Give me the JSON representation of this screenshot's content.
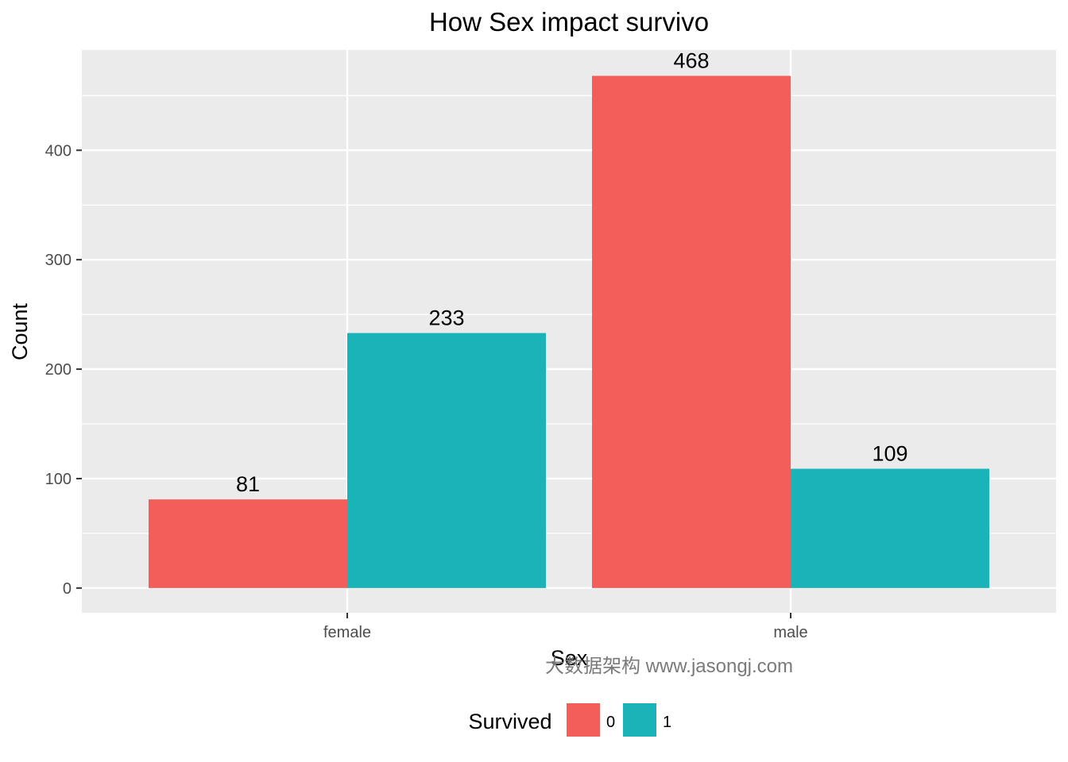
{
  "chart_data": {
    "type": "bar",
    "title": "How Sex impact survivo",
    "xlabel": "Sex",
    "ylabel": "Count",
    "categories": [
      "female",
      "male"
    ],
    "series": [
      {
        "name": "0",
        "color": "#F35E5A",
        "values": [
          81,
          468
        ]
      },
      {
        "name": "1",
        "color": "#19B3B8",
        "values": [
          233,
          109
        ]
      }
    ],
    "ylim": [
      -22.6,
      491.6
    ],
    "yticks": [
      0,
      100,
      200,
      300,
      400
    ],
    "grid": true,
    "legend": {
      "title": "Survived",
      "placement": "bottom"
    }
  },
  "watermark": "大数据架构  www.jasongj.com"
}
